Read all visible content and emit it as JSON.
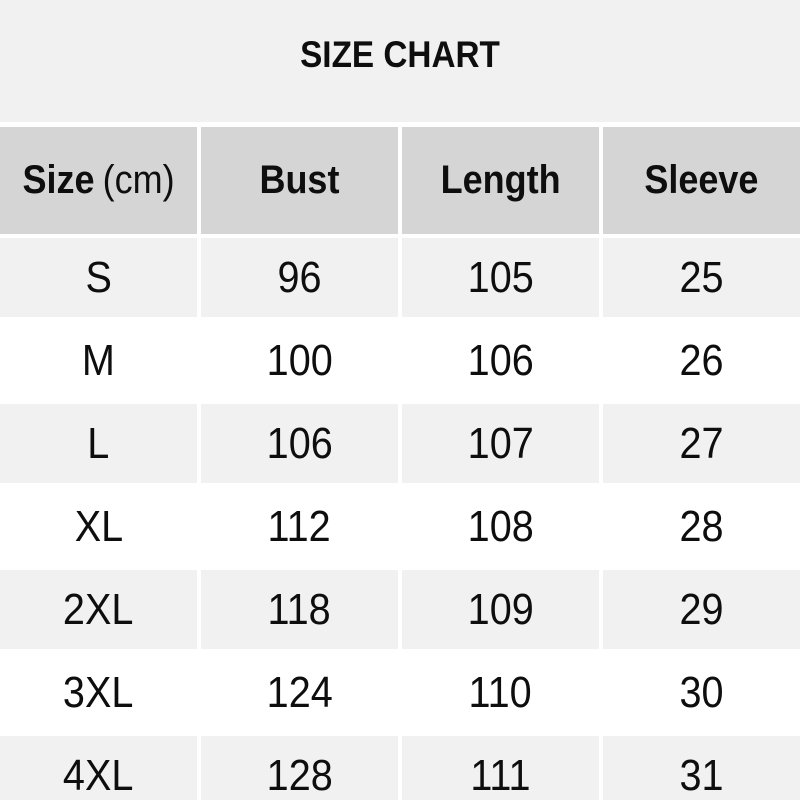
{
  "title": "SIZE CHART",
  "colors": {
    "page_bg": "#ffffff",
    "section_bg": "#f1f1f1",
    "header_bg": "#d5d5d5",
    "row_bg": "#ffffff",
    "text": "#0e0e0e"
  },
  "header": {
    "size_label": "Size",
    "size_unit": "(cm)",
    "bust_label": "Bust",
    "length_label": "Length",
    "sleeve_label": "Sleeve"
  },
  "chart_data": {
    "type": "table",
    "title": "SIZE CHART",
    "unit": "cm",
    "columns": [
      "Size (cm)",
      "Bust",
      "Length",
      "Sleeve"
    ],
    "rows": [
      [
        "S",
        96,
        105,
        25
      ],
      [
        "M",
        100,
        106,
        26
      ],
      [
        "L",
        106,
        107,
        27
      ],
      [
        "XL",
        112,
        108,
        28
      ],
      [
        "2XL",
        118,
        109,
        29
      ],
      [
        "3XL",
        124,
        110,
        30
      ],
      [
        "4XL",
        128,
        111,
        31
      ]
    ]
  }
}
